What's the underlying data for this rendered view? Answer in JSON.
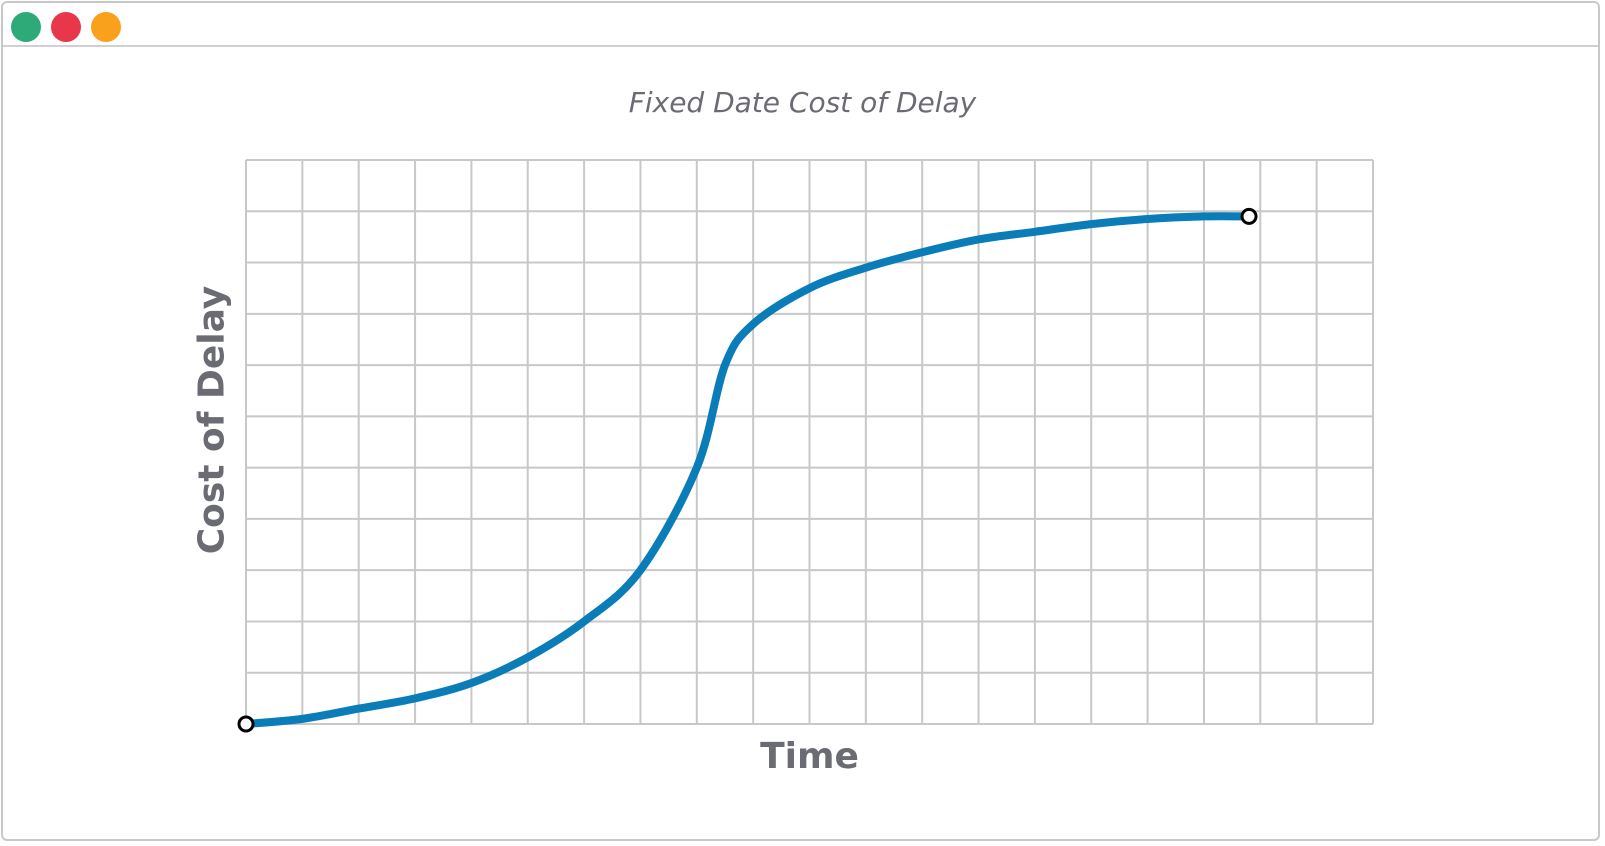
{
  "window": {
    "controls": [
      {
        "name": "green-dot",
        "color": "#2eaa78"
      },
      {
        "name": "red-dot",
        "color": "#e8364b"
      },
      {
        "name": "orange-dot",
        "color": "#f9a11b"
      }
    ]
  },
  "chart_data": {
    "type": "line",
    "title": "Fixed Date Cost of Delay",
    "xlabel": "Time",
    "ylabel": "Cost of Delay",
    "grid": true,
    "xlim": [
      0,
      20
    ],
    "ylim": [
      0,
      11
    ],
    "line_color": "#0a7db9",
    "grid_color": "#c8c8c8",
    "series": [
      {
        "points": [
          [
            0,
            0.0
          ],
          [
            1,
            0.1
          ],
          [
            2,
            0.3
          ],
          [
            3,
            0.5
          ],
          [
            4,
            0.8
          ],
          [
            5,
            1.3
          ],
          [
            6,
            2.0
          ],
          [
            7,
            3.0
          ],
          [
            8,
            5.0
          ],
          [
            8.5,
            7.0
          ],
          [
            9,
            7.8
          ],
          [
            10,
            8.5
          ],
          [
            11,
            8.9
          ],
          [
            12,
            9.2
          ],
          [
            13,
            9.45
          ],
          [
            14,
            9.6
          ],
          [
            15,
            9.75
          ],
          [
            16,
            9.85
          ],
          [
            17,
            9.9
          ],
          [
            17.8,
            9.9
          ]
        ],
        "endpoints": [
          [
            0,
            0.0
          ],
          [
            17.8,
            9.9
          ]
        ]
      }
    ]
  }
}
